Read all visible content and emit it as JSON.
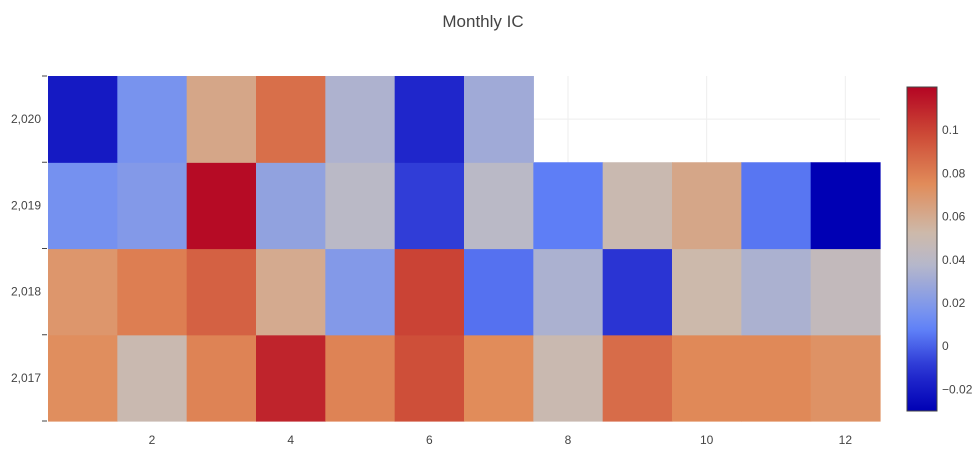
{
  "chart_data": {
    "type": "heatmap",
    "title": "Monthly IC",
    "xlabel": "",
    "ylabel": "",
    "x": [
      1,
      2,
      3,
      4,
      5,
      6,
      7,
      8,
      9,
      10,
      11,
      12
    ],
    "y": [
      2017,
      2018,
      2019,
      2020
    ],
    "x_tick_labels": [
      "2",
      "4",
      "6",
      "8",
      "10",
      "12"
    ],
    "x_tick_values": [
      2,
      4,
      6,
      8,
      10,
      12
    ],
    "y_tick_labels": [
      "2,017",
      "2,018",
      "2,019",
      "2,020"
    ],
    "z": [
      [
        0.074,
        0.05,
        0.078,
        0.11,
        0.078,
        0.096,
        0.075,
        0.05,
        0.086,
        0.076,
        0.076,
        0.072
      ],
      [
        0.07,
        0.08,
        0.09,
        0.06,
        0.02,
        0.1,
        0.004,
        0.034,
        -0.01,
        0.052,
        0.034,
        0.045
      ],
      [
        0.015,
        0.02,
        0.118,
        0.025,
        0.04,
        -0.008,
        0.04,
        0.007,
        0.05,
        0.062,
        0.005,
        -0.03
      ],
      [
        -0.02,
        0.016,
        0.062,
        0.085,
        0.035,
        -0.015,
        0.03,
        null,
        null,
        null,
        null,
        null
      ]
    ],
    "zlim": [
      -0.03,
      0.12
    ],
    "colorscale": "coolwarm",
    "colorbar": {
      "tick_values": [
        -0.02,
        0,
        0.02,
        0.04,
        0.06,
        0.08,
        0.1
      ],
      "tick_labels": [
        "−0.02",
        "0",
        "0.02",
        "0.04",
        "0.06",
        "0.08",
        "0.1"
      ]
    }
  }
}
